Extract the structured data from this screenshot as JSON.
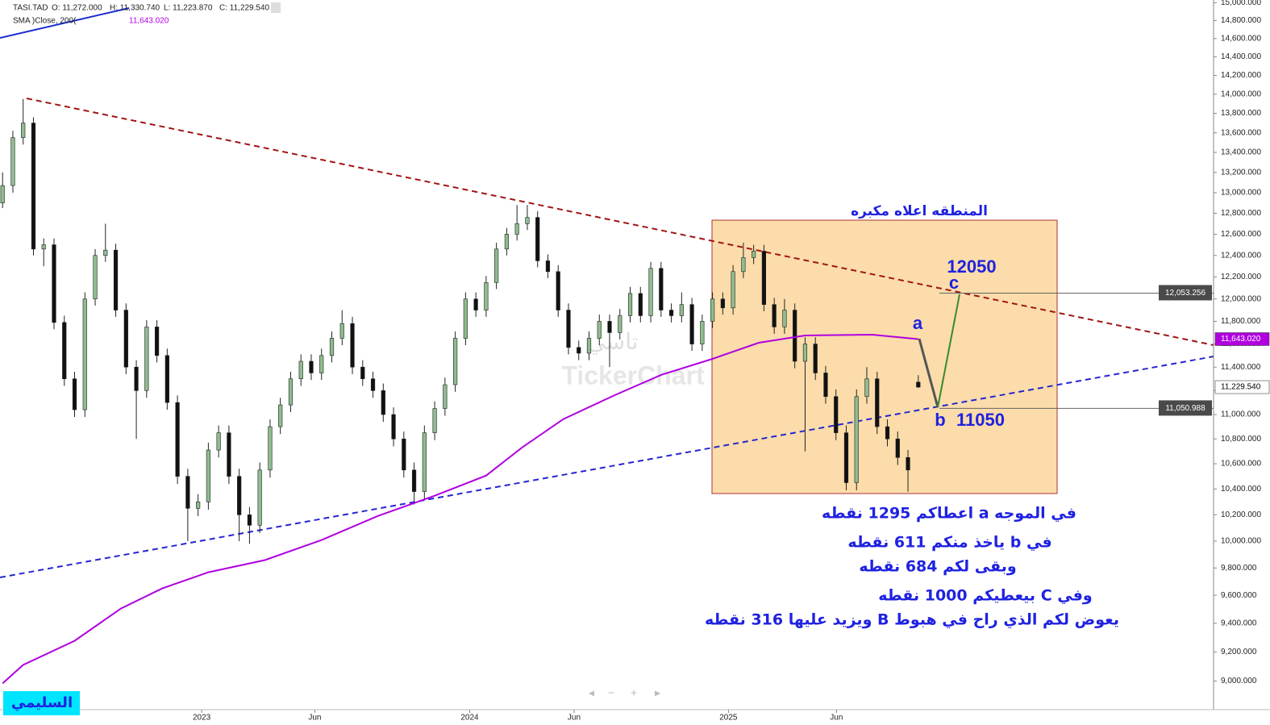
{
  "header": {
    "symbol": "TASI.TAD",
    "open": "O: 11,272.000",
    "high": "H: 11,330.740",
    "low": "L: 11,223.870",
    "close": "C: 11,229.540",
    "sma_name": "SMA )Close, 200(",
    "sma_value": "11,643.020"
  },
  "watermark": {
    "arabic": "تاسي",
    "brand": "TickerChart"
  },
  "signature": "السليمي",
  "chart_data": {
    "type": "candlestick",
    "log_scale": true,
    "up_color": "#8fbc8f",
    "down_color": "#111111",
    "sma_color": "#b000e0",
    "xlim": [
      -0.5,
      235.4
    ],
    "ylim": [
      8808,
      15030
    ],
    "xticks": [
      {
        "value": 38.7,
        "label": "2023"
      },
      {
        "value": 60.7,
        "label": "Jun"
      },
      {
        "value": 90.8,
        "label": "2024"
      },
      {
        "value": 111.1,
        "label": "Jun"
      },
      {
        "value": 141.1,
        "label": "2025"
      },
      {
        "value": 162.1,
        "label": "Jun"
      }
    ],
    "yticks": [
      {
        "value": 9000,
        "label": "9,000.000"
      },
      {
        "value": 9200,
        "label": "9,200.000"
      },
      {
        "value": 9400,
        "label": "9,400.000"
      },
      {
        "value": 9600,
        "label": "9,600.000"
      },
      {
        "value": 9800,
        "label": "9,800.000"
      },
      {
        "value": 10000,
        "label": "10,000.000"
      },
      {
        "value": 10200,
        "label": "10,200.000"
      },
      {
        "value": 10400,
        "label": "10,400.000"
      },
      {
        "value": 10600,
        "label": "10,600.000"
      },
      {
        "value": 10800,
        "label": "10,800.000"
      },
      {
        "value": 11000,
        "label": "11,000.000"
      },
      {
        "value": 11200,
        "label": "11,200.000"
      },
      {
        "value": 11400,
        "label": "11,400.000"
      },
      {
        "value": 11600,
        "label": "11,600.000"
      },
      {
        "value": 11800,
        "label": "11,800.000"
      },
      {
        "value": 12000,
        "label": "12,000.000"
      },
      {
        "value": 12200,
        "label": "12,200.000"
      },
      {
        "value": 12400,
        "label": "12,400.000"
      },
      {
        "value": 12600,
        "label": "12,600.000"
      },
      {
        "value": 12800,
        "label": "12,800.000"
      },
      {
        "value": 13000,
        "label": "13,000.000"
      },
      {
        "value": 13200,
        "label": "13,200.000"
      },
      {
        "value": 13400,
        "label": "13,400.000"
      },
      {
        "value": 13600,
        "label": "13,600.000"
      },
      {
        "value": 13800,
        "label": "13,800.000"
      },
      {
        "value": 14000,
        "label": "14,000.000"
      },
      {
        "value": 14200,
        "label": "14,200.000"
      },
      {
        "value": 14400,
        "label": "14,400.000"
      },
      {
        "value": 14600,
        "label": "14,600.000"
      },
      {
        "value": 14800,
        "label": "14,800.000"
      },
      {
        "value": 15000,
        "label": "15,000.000"
      }
    ],
    "candles": {
      "x": [
        0,
        2,
        4,
        6,
        8,
        10,
        12,
        14,
        16,
        18,
        20,
        22,
        24,
        26,
        28,
        30,
        32,
        34,
        36,
        38,
        40,
        42,
        44,
        46,
        48,
        50,
        52,
        54,
        56,
        58,
        60,
        62,
        64,
        66,
        68,
        70,
        72,
        74,
        76,
        78,
        80,
        82,
        84,
        86,
        88,
        90,
        92,
        94,
        96,
        98,
        100,
        102,
        104,
        106,
        108,
        110,
        112,
        114,
        116,
        118,
        120,
        122,
        124,
        126,
        128,
        130,
        132,
        134,
        136,
        138,
        140,
        142,
        144,
        146,
        148,
        150,
        152,
        154,
        156,
        158,
        160,
        162,
        164,
        166,
        168,
        170,
        172,
        174,
        176,
        178
      ],
      "open": [
        12900,
        13070,
        13550,
        13700,
        12460,
        12500,
        11790,
        11300,
        11040,
        12000,
        12400,
        12450,
        11900,
        11400,
        11200,
        11750,
        11500,
        11100,
        10500,
        10250,
        10300,
        10710,
        10850,
        10500,
        10200,
        10120,
        10550,
        10900,
        11080,
        11300,
        11450,
        11350,
        11500,
        11650,
        11780,
        11400,
        11300,
        11200,
        11000,
        10800,
        10550,
        10380,
        10850,
        11050,
        11250,
        11650,
        12000,
        11900,
        12150,
        12460,
        12600,
        12700,
        12760,
        12350,
        12250,
        11900,
        11570,
        11520,
        11650,
        11800,
        11700,
        11850,
        12050,
        11850,
        12280,
        11900,
        11850,
        11950,
        11600,
        11800,
        12000,
        11920,
        12250,
        12380,
        12440,
        11950,
        11750,
        11900,
        11450,
        11600,
        11350,
        11150,
        10850,
        10450,
        11150,
        11300,
        10900,
        10800,
        10650,
        11272
      ],
      "high": [
        13200,
        13620,
        13950,
        13760,
        12560,
        12560,
        11850,
        11360,
        12060,
        12460,
        12700,
        12510,
        11960,
        11460,
        11810,
        11810,
        11560,
        11160,
        10560,
        10360,
        10770,
        10910,
        10910,
        10560,
        10260,
        10610,
        10960,
        11140,
        11360,
        11510,
        11510,
        11560,
        11710,
        11900,
        11840,
        11460,
        11360,
        11260,
        11060,
        10860,
        10610,
        10910,
        11110,
        11310,
        11710,
        12060,
        12060,
        12210,
        12520,
        12660,
        12880,
        12880,
        12820,
        12410,
        12310,
        11960,
        11630,
        11710,
        11860,
        11860,
        11910,
        12110,
        12110,
        12340,
        12340,
        11960,
        12060,
        12010,
        11860,
        12060,
        12060,
        12310,
        12520,
        12500,
        12500,
        12010,
        12000,
        11960,
        11660,
        11660,
        11410,
        11210,
        10910,
        11210,
        11400,
        11360,
        10960,
        10860,
        10710,
        11330.74
      ],
      "low": [
        12850,
        13000,
        13480,
        12400,
        12300,
        11730,
        11240,
        10980,
        10980,
        11940,
        12340,
        11840,
        11340,
        10800,
        11140,
        11440,
        11040,
        10440,
        10000,
        10190,
        10240,
        10650,
        10440,
        10000,
        9980,
        10060,
        10490,
        10840,
        11020,
        11240,
        11290,
        11290,
        11440,
        11590,
        11340,
        11240,
        11140,
        10940,
        10740,
        10490,
        10280,
        10320,
        10790,
        10990,
        11190,
        11590,
        11840,
        11840,
        12090,
        12400,
        12540,
        12640,
        12290,
        12190,
        11840,
        11510,
        11460,
        11460,
        11590,
        11400,
        11640,
        11790,
        11790,
        11790,
        11840,
        11790,
        11790,
        11540,
        11540,
        11740,
        11860,
        11860,
        12190,
        12320,
        11890,
        11690,
        11690,
        11390,
        10700,
        11290,
        11090,
        10790,
        10390,
        10390,
        11090,
        10840,
        10740,
        10590,
        10380,
        11223.87
      ],
      "close": [
        13070,
        13550,
        13700,
        12460,
        12500,
        11790,
        11300,
        11040,
        12000,
        12400,
        12450,
        11900,
        11400,
        11200,
        11750,
        11500,
        11100,
        10500,
        10250,
        10300,
        10710,
        10850,
        10500,
        10200,
        10120,
        10550,
        10900,
        11080,
        11300,
        11450,
        11350,
        11500,
        11650,
        11780,
        11400,
        11300,
        11200,
        11000,
        10800,
        10550,
        10380,
        10850,
        11050,
        11250,
        11650,
        12000,
        11900,
        12150,
        12460,
        12600,
        12700,
        12760,
        12350,
        12250,
        11900,
        11570,
        11520,
        11650,
        11800,
        11700,
        11850,
        12050,
        11850,
        12280,
        11900,
        11850,
        11950,
        11600,
        11800,
        12000,
        11920,
        12250,
        12380,
        12440,
        11950,
        11750,
        11900,
        11450,
        11600,
        11350,
        11150,
        10850,
        10450,
        11150,
        11300,
        10900,
        10800,
        10650,
        10550,
        11229.54
      ]
    },
    "sma": {
      "x": [
        0,
        4,
        14,
        23,
        31,
        40,
        51,
        62,
        73,
        84,
        94,
        101,
        109,
        119,
        128,
        138,
        147,
        156,
        169,
        178
      ],
      "values": [
        8984,
        9110,
        9277,
        9505,
        9650,
        9768,
        9858,
        10008,
        10192,
        10348,
        10506,
        10731,
        10962,
        11162,
        11333,
        11471,
        11611,
        11675,
        11682,
        11643.02
      ]
    },
    "price_lines": [
      {
        "value": 12053.256,
        "label": "12,053.256"
      },
      {
        "value": 11050.988,
        "label": "11,050.988"
      }
    ],
    "axis_markers": [
      {
        "value": 11643.02,
        "label": "11,643.020",
        "color": "#b000e0",
        "text_color": "#ffffff"
      },
      {
        "value": 11229.54,
        "label": "11,229.540",
        "color": "#ffffff",
        "text_color": "#000000"
      }
    ]
  },
  "annotations": {
    "zone_title": "المنطقه اعلاه مكبره",
    "target": "12050",
    "wave_c": "c",
    "wave_a": "a",
    "wave_b": "b",
    "support": "11050",
    "notes": [
      "في الموجه a  اعطاكم 1295  نقطه",
      "في b ياخذ منكم 611 نقطه",
      "وبقى لكم 684 نقطه",
      "وفي C بيعطيكم 1000 نقطه",
      "يعوض لكم الذي راح في هبوط B ويزيد عليها 316 نقطه"
    ]
  }
}
